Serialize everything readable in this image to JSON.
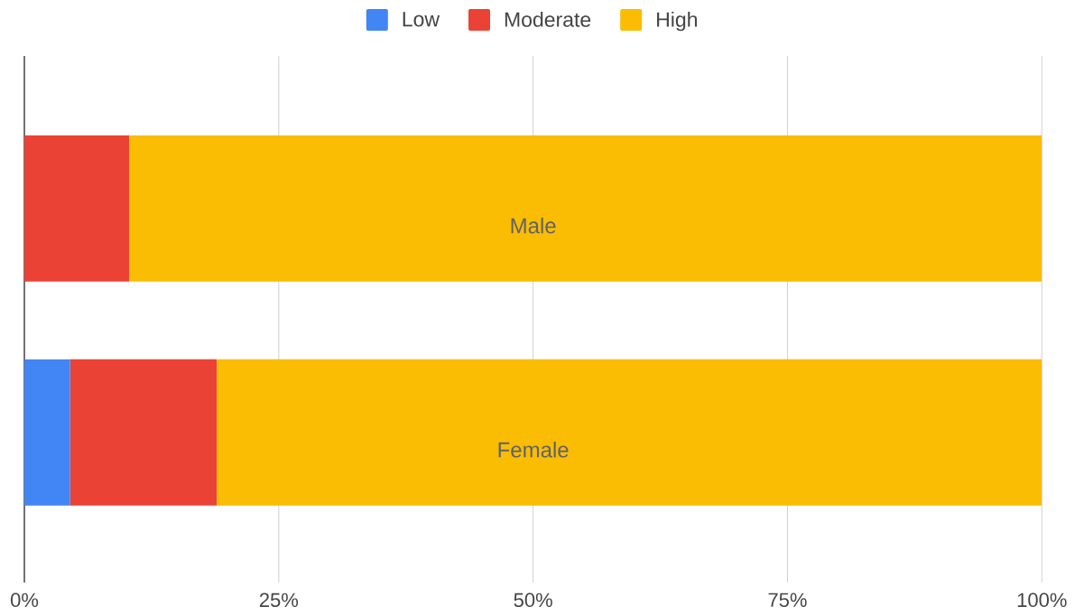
{
  "chart_data": {
    "type": "bar",
    "orientation": "horizontal",
    "stacked": true,
    "categories": [
      "Male",
      "Female"
    ],
    "series": [
      {
        "name": "Low",
        "color": "#4285f4",
        "values": [
          0,
          4.5
        ]
      },
      {
        "name": "Moderate",
        "color": "#ea4335",
        "values": [
          10.3,
          14.4
        ]
      },
      {
        "name": "High",
        "color": "#fbbc04",
        "values": [
          89.7,
          81.1
        ]
      }
    ],
    "xlim": [
      0,
      100
    ],
    "xticks": [
      {
        "value": 0,
        "label": "0%"
      },
      {
        "value": 25,
        "label": "25%"
      },
      {
        "value": 50,
        "label": "50%"
      },
      {
        "value": 75,
        "label": "75%"
      },
      {
        "value": 100,
        "label": "100%"
      }
    ],
    "grid": "x",
    "legend": "top"
  }
}
